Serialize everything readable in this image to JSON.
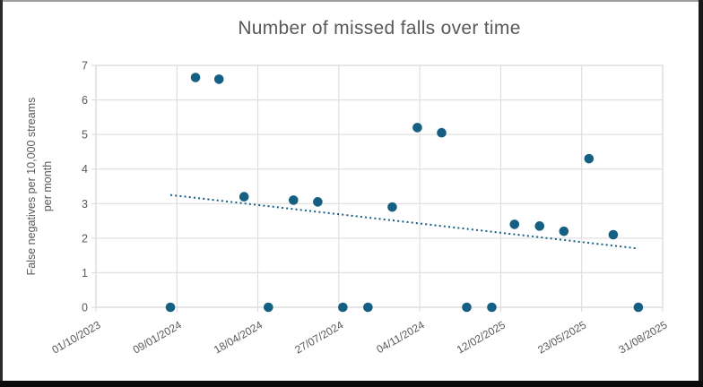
{
  "chart_data": {
    "type": "scatter",
    "title": "Number of missed falls over time",
    "ylabel_line1": "False negatives per 10,000 streams",
    "ylabel_line2": "per month",
    "xlabel": "",
    "ylim": [
      0,
      7
    ],
    "yticks": [
      0,
      1,
      2,
      3,
      4,
      5,
      6,
      7
    ],
    "x_range": [
      "01/10/2023",
      "31/08/2025"
    ],
    "xticks": [
      "01/10/2023",
      "09/01/2024",
      "18/04/2024",
      "27/07/2024",
      "04/11/2024",
      "12/02/2025",
      "23/05/2025",
      "31/08/2025"
    ],
    "grid": true,
    "legend": false,
    "series": [
      {
        "name": "False negatives per 10,000 streams per month",
        "points": [
          {
            "date": "01/01/2024",
            "value": 0
          },
          {
            "date": "01/02/2024",
            "value": 6.65
          },
          {
            "date": "01/03/2024",
            "value": 6.6
          },
          {
            "date": "01/04/2024",
            "value": 3.2
          },
          {
            "date": "01/05/2024",
            "value": 0
          },
          {
            "date": "01/06/2024",
            "value": 3.1
          },
          {
            "date": "01/07/2024",
            "value": 3.05
          },
          {
            "date": "01/08/2024",
            "value": 0
          },
          {
            "date": "01/09/2024",
            "value": 0
          },
          {
            "date": "01/10/2024",
            "value": 2.9
          },
          {
            "date": "01/11/2024",
            "value": 5.2
          },
          {
            "date": "01/12/2024",
            "value": 5.05
          },
          {
            "date": "01/01/2025",
            "value": 0
          },
          {
            "date": "01/02/2025",
            "value": 0
          },
          {
            "date": "01/03/2025",
            "value": 2.4
          },
          {
            "date": "01/04/2025",
            "value": 2.35
          },
          {
            "date": "01/05/2025",
            "value": 2.2
          },
          {
            "date": "01/06/2025",
            "value": 4.3
          },
          {
            "date": "01/07/2025",
            "value": 2.1
          },
          {
            "date": "01/08/2025",
            "value": 0
          }
        ]
      }
    ],
    "trendline": {
      "style": "dotted-linear",
      "start": {
        "date": "01/01/2024",
        "value": 3.25
      },
      "end": {
        "date": "01/08/2025",
        "value": 1.7
      }
    },
    "colors": {
      "marker": "#156082",
      "trendline": "#156082",
      "gridline": "#D9D9D9",
      "axis_text": "#595959",
      "title_text": "#595959"
    }
  }
}
